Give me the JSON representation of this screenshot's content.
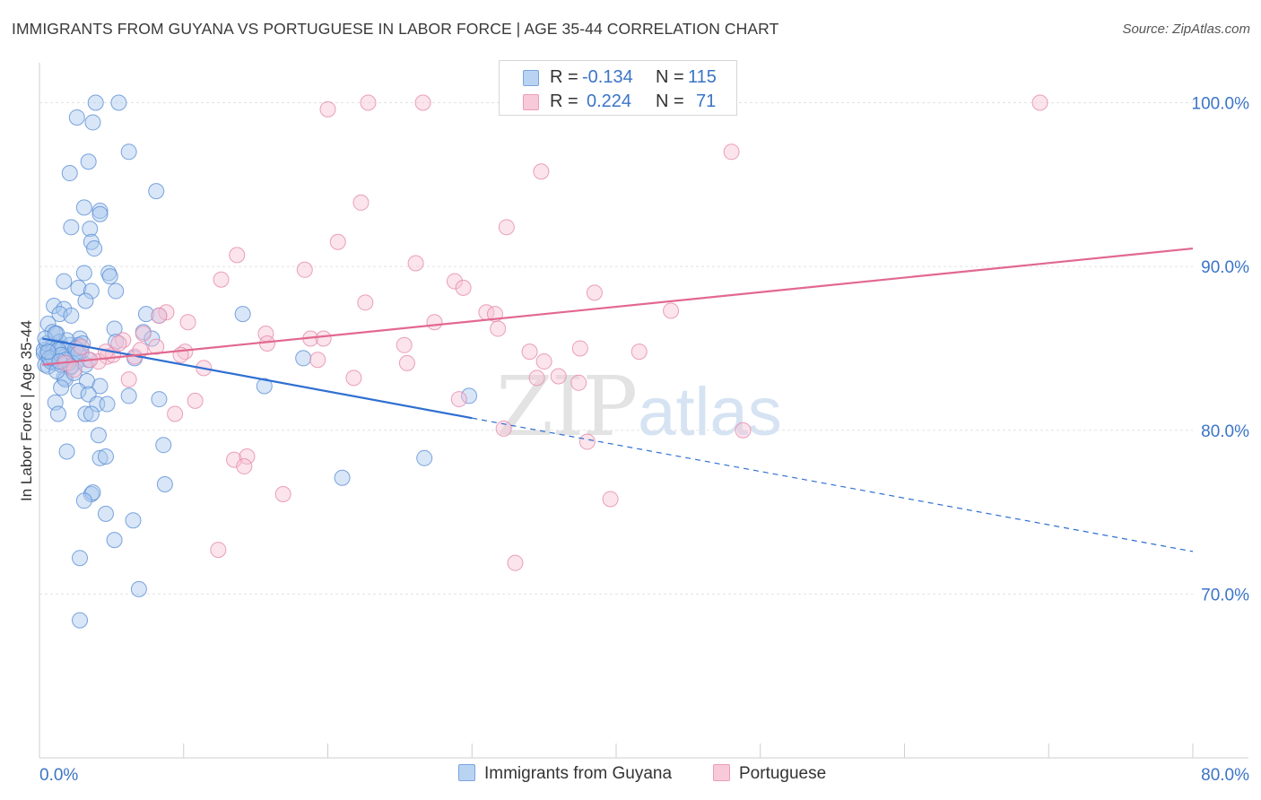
{
  "header": {
    "title": "IMMIGRANTS FROM GUYANA VS PORTUGUESE IN LABOR FORCE | AGE 35-44 CORRELATION CHART",
    "source": "Source: ZipAtlas.com"
  },
  "watermark": {
    "zip": "ZIP",
    "atlas": "atlas"
  },
  "legend": {
    "rows": [
      {
        "r_label": "R =",
        "r_value": "-0.134",
        "n_label": "N =",
        "n_value": "115"
      },
      {
        "r_label": "R =",
        "r_value": "0.224",
        "n_label": "N =",
        "n_value": "71"
      }
    ],
    "bottom": [
      "Immigrants from Guyana",
      "Portuguese"
    ]
  },
  "chart_data": {
    "type": "scatter",
    "ylabel": "In Labor Force | Age 35-44",
    "xlim": [
      0,
      80
    ],
    "ylim": [
      60,
      102
    ],
    "x_tick_labels": [
      "0.0%",
      "80.0%"
    ],
    "y_ticks": [
      70,
      80,
      90,
      100
    ],
    "y_tick_labels": [
      "70.0%",
      "80.0%",
      "90.0%",
      "100.0%"
    ],
    "grid": true,
    "legend_position": "top-center",
    "colors": {
      "guyana_fill": "#a8c8ee",
      "guyana_stroke": "#5b8fd6",
      "guyana_line": "#2f6fd1",
      "portuguese_fill": "#f6c3d4",
      "portuguese_stroke": "#e58aab",
      "portuguese_line": "#e2688f",
      "tick_label": "#3b74c6"
    },
    "series": [
      {
        "name": "Immigrants from Guyana",
        "trend": {
          "x_start": 0.2,
          "y_start": 85.6,
          "x_solid_end": 30,
          "x_end": 80,
          "y_end": 72.6
        },
        "points": [
          [
            3.9,
            100.0
          ],
          [
            5.5,
            100.0
          ],
          [
            2.6,
            99.1
          ],
          [
            3.7,
            98.8
          ],
          [
            6.2,
            97.0
          ],
          [
            3.4,
            96.4
          ],
          [
            2.1,
            95.7
          ],
          [
            8.1,
            94.6
          ],
          [
            3.1,
            93.6
          ],
          [
            4.2,
            93.4
          ],
          [
            4.2,
            93.2
          ],
          [
            2.2,
            92.4
          ],
          [
            3.5,
            92.3
          ],
          [
            3.6,
            91.5
          ],
          [
            3.8,
            91.1
          ],
          [
            3.1,
            89.6
          ],
          [
            4.8,
            89.6
          ],
          [
            4.9,
            89.4
          ],
          [
            1.7,
            89.1
          ],
          [
            2.7,
            88.7
          ],
          [
            3.6,
            88.5
          ],
          [
            5.3,
            88.5
          ],
          [
            3.2,
            87.9
          ],
          [
            1.0,
            87.6
          ],
          [
            1.7,
            87.4
          ],
          [
            1.4,
            87.1
          ],
          [
            2.2,
            87.0
          ],
          [
            7.4,
            87.1
          ],
          [
            8.3,
            87.0
          ],
          [
            14.1,
            87.1
          ],
          [
            0.6,
            86.5
          ],
          [
            5.2,
            86.2
          ],
          [
            7.2,
            86.0
          ],
          [
            0.9,
            86.0
          ],
          [
            1.2,
            85.9
          ],
          [
            2.8,
            85.6
          ],
          [
            7.8,
            85.6
          ],
          [
            1.4,
            85.4
          ],
          [
            2.1,
            85.2
          ],
          [
            2.7,
            85.2
          ],
          [
            5.3,
            85.4
          ],
          [
            0.7,
            85.0
          ],
          [
            1.2,
            84.8
          ],
          [
            0.3,
            84.7
          ],
          [
            0.5,
            84.6
          ],
          [
            1.8,
            84.5
          ],
          [
            0.9,
            84.3
          ],
          [
            3.4,
            84.3
          ],
          [
            2.6,
            84.2
          ],
          [
            1.1,
            84.1
          ],
          [
            0.4,
            84.0
          ],
          [
            1.5,
            84.0
          ],
          [
            2.1,
            83.8
          ],
          [
            6.6,
            84.4
          ],
          [
            18.3,
            84.4
          ],
          [
            1.7,
            83.2
          ],
          [
            3.3,
            83.0
          ],
          [
            1.8,
            83.1
          ],
          [
            1.5,
            82.6
          ],
          [
            4.2,
            82.7
          ],
          [
            2.7,
            82.4
          ],
          [
            3.4,
            82.2
          ],
          [
            6.2,
            82.1
          ],
          [
            8.3,
            81.9
          ],
          [
            15.6,
            82.7
          ],
          [
            29.8,
            82.1
          ],
          [
            1.1,
            81.7
          ],
          [
            4.0,
            81.6
          ],
          [
            1.3,
            81.0
          ],
          [
            3.2,
            81.0
          ],
          [
            3.6,
            81.0
          ],
          [
            4.7,
            81.6
          ],
          [
            4.1,
            79.7
          ],
          [
            8.6,
            79.1
          ],
          [
            1.9,
            78.7
          ],
          [
            4.2,
            78.3
          ],
          [
            4.6,
            78.4
          ],
          [
            26.7,
            78.3
          ],
          [
            21.0,
            77.1
          ],
          [
            8.7,
            76.7
          ],
          [
            3.6,
            76.1
          ],
          [
            3.7,
            76.2
          ],
          [
            3.1,
            75.7
          ],
          [
            4.6,
            74.9
          ],
          [
            6.5,
            74.5
          ],
          [
            5.2,
            73.3
          ],
          [
            2.8,
            72.2
          ],
          [
            6.9,
            70.3
          ],
          [
            2.8,
            68.4
          ],
          [
            0.3,
            84.9
          ],
          [
            0.6,
            83.9
          ],
          [
            1.9,
            85.5
          ],
          [
            2.3,
            84.6
          ],
          [
            1.0,
            85.1
          ],
          [
            0.8,
            84.2
          ],
          [
            2.9,
            84.8
          ],
          [
            1.6,
            85.0
          ],
          [
            0.5,
            85.3
          ],
          [
            2.4,
            83.5
          ],
          [
            1.2,
            83.6
          ],
          [
            0.9,
            84.5
          ],
          [
            3.0,
            85.3
          ],
          [
            1.3,
            84.9
          ],
          [
            0.7,
            84.4
          ],
          [
            2.0,
            84.1
          ],
          [
            1.5,
            84.6
          ],
          [
            2.5,
            85.0
          ],
          [
            0.4,
            85.6
          ],
          [
            1.8,
            84.3
          ],
          [
            3.2,
            84.0
          ],
          [
            1.1,
            85.9
          ],
          [
            2.2,
            83.9
          ],
          [
            0.6,
            84.8
          ],
          [
            1.4,
            84.2
          ],
          [
            2.7,
            84.7
          ]
        ]
      },
      {
        "name": "Portuguese",
        "trend": {
          "x_start": 0.2,
          "y_start": 84.0,
          "x_end": 80,
          "y_end": 91.1
        },
        "points": [
          [
            22.8,
            100.0
          ],
          [
            26.6,
            100.0
          ],
          [
            69.4,
            100.0
          ],
          [
            20.0,
            99.6
          ],
          [
            48.0,
            97.0
          ],
          [
            34.8,
            95.8
          ],
          [
            22.3,
            93.9
          ],
          [
            32.4,
            92.4
          ],
          [
            20.7,
            91.5
          ],
          [
            13.7,
            90.7
          ],
          [
            26.1,
            90.2
          ],
          [
            18.4,
            89.8
          ],
          [
            12.6,
            89.2
          ],
          [
            28.8,
            89.1
          ],
          [
            29.4,
            88.7
          ],
          [
            38.5,
            88.4
          ],
          [
            22.6,
            87.8
          ],
          [
            8.8,
            87.2
          ],
          [
            8.3,
            87.0
          ],
          [
            31.0,
            87.2
          ],
          [
            31.6,
            87.1
          ],
          [
            43.8,
            87.3
          ],
          [
            10.3,
            86.6
          ],
          [
            27.4,
            86.6
          ],
          [
            31.8,
            86.2
          ],
          [
            7.2,
            85.9
          ],
          [
            15.7,
            85.9
          ],
          [
            18.8,
            85.6
          ],
          [
            19.7,
            85.6
          ],
          [
            5.8,
            85.5
          ],
          [
            15.8,
            85.3
          ],
          [
            25.3,
            85.2
          ],
          [
            34.0,
            84.8
          ],
          [
            10.1,
            84.8
          ],
          [
            37.5,
            85.0
          ],
          [
            41.6,
            84.8
          ],
          [
            4.7,
            84.5
          ],
          [
            5.1,
            84.6
          ],
          [
            9.8,
            84.6
          ],
          [
            19.3,
            84.3
          ],
          [
            25.5,
            84.1
          ],
          [
            35.0,
            84.2
          ],
          [
            11.4,
            83.8
          ],
          [
            6.2,
            83.1
          ],
          [
            21.8,
            83.2
          ],
          [
            34.5,
            83.2
          ],
          [
            36.0,
            83.3
          ],
          [
            37.4,
            82.9
          ],
          [
            10.8,
            81.8
          ],
          [
            29.1,
            81.9
          ],
          [
            9.4,
            81.0
          ],
          [
            32.2,
            80.1
          ],
          [
            48.8,
            80.0
          ],
          [
            38.0,
            79.3
          ],
          [
            13.5,
            78.2
          ],
          [
            14.4,
            78.4
          ],
          [
            14.2,
            77.8
          ],
          [
            16.9,
            76.1
          ],
          [
            39.6,
            75.8
          ],
          [
            12.4,
            72.7
          ],
          [
            33.0,
            71.9
          ],
          [
            5.5,
            85.3
          ],
          [
            6.6,
            84.5
          ],
          [
            4.1,
            84.2
          ],
          [
            8.1,
            85.1
          ],
          [
            1.8,
            84.1
          ],
          [
            3.5,
            84.3
          ],
          [
            2.9,
            85.1
          ],
          [
            7.0,
            84.9
          ],
          [
            2.4,
            83.7
          ],
          [
            4.6,
            84.8
          ]
        ]
      }
    ]
  }
}
